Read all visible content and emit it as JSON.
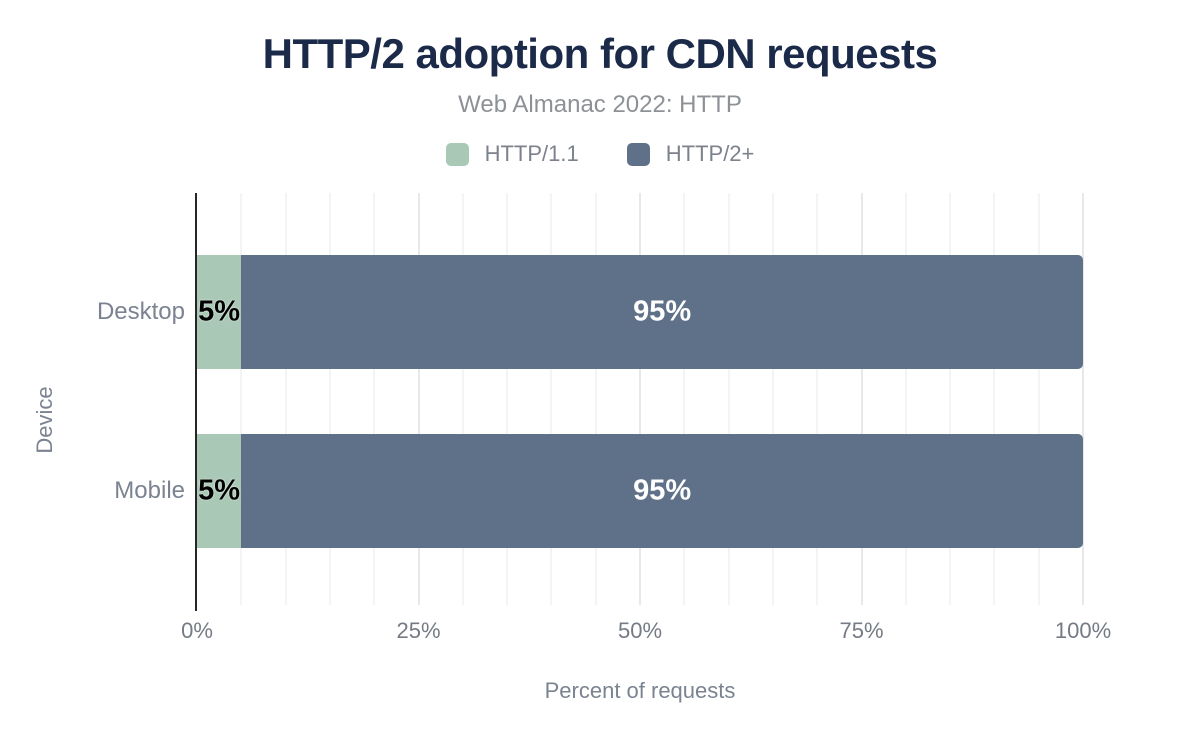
{
  "header": {
    "title": "HTTP/2 adoption for CDN requests",
    "subtitle": "Web Almanac 2022: HTTP"
  },
  "legend": [
    {
      "label": "HTTP/1.1",
      "color": "#a9c8b5"
    },
    {
      "label": "HTTP/2+",
      "color": "#5f7189"
    }
  ],
  "chart_data": {
    "type": "bar",
    "orientation": "horizontal",
    "stacked": true,
    "title": "HTTP/2 adoption for CDN requests",
    "subtitle": "Web Almanac 2022: HTTP",
    "categories": [
      "Desktop",
      "Mobile"
    ],
    "series": [
      {
        "name": "HTTP/1.1",
        "color": "#a9c8b5",
        "values": [
          5,
          5
        ],
        "label_color": "#000000",
        "label_outline": true
      },
      {
        "name": "HTTP/2+",
        "color": "#5f7189",
        "values": [
          95,
          95
        ],
        "label_color": "#ffffff",
        "label_outline": false
      }
    ],
    "data_label_suffix": "%",
    "xlabel": "Percent of requests",
    "ylabel": "Device",
    "xlim": [
      0,
      100
    ],
    "xticks": [
      {
        "label": "0%",
        "value": 0
      },
      {
        "label": "25%",
        "value": 25
      },
      {
        "label": "50%",
        "value": 50
      },
      {
        "label": "75%",
        "value": 75
      },
      {
        "label": "100%",
        "value": 100
      }
    ],
    "grid": {
      "minor_step": 5,
      "major_step": 25,
      "direction": "vertical"
    },
    "legend_position": "top"
  },
  "colors": {
    "title": "#1b2a49",
    "muted_text": "#7b8391",
    "axis_line": "#262626",
    "series_http11": "#a9c8b5",
    "series_http2": "#5f7189"
  }
}
